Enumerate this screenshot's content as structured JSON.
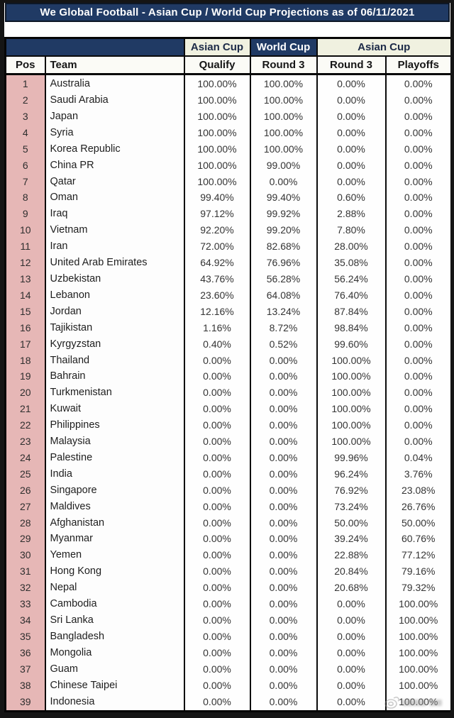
{
  "page": {
    "title": "We Global Football - Asian Cup / World Cup Projections as of 06/11/2021"
  },
  "colors": {
    "navy": "#203a64",
    "cream": "#f0f1e0",
    "rose_pos_column": "#e6b7b6",
    "border_black": "#0a0a0a",
    "header_bg": "#fbfbf6",
    "white": "#ffffff"
  },
  "watermark": {
    "icon": "weibo-eye-icon"
  },
  "chart_data": {
    "type": "table",
    "title": "We Global Football - Asian Cup / World Cup Projections as of 06/11/2021",
    "group_headers": [
      {
        "label": "",
        "span": 2,
        "style": "navy"
      },
      {
        "label": "Asian Cup",
        "span": 1,
        "style": "cream"
      },
      {
        "label": "World Cup",
        "span": 1,
        "style": "navy"
      },
      {
        "label": "Asian Cup",
        "span": 2,
        "style": "cream"
      }
    ],
    "columns": [
      "Pos",
      "Team",
      "Qualify",
      "Round 3",
      "Round 3",
      "Playoffs"
    ],
    "rows": [
      [
        "1",
        "Australia",
        "100.00%",
        "100.00%",
        "0.00%",
        "0.00%"
      ],
      [
        "2",
        "Saudi Arabia",
        "100.00%",
        "100.00%",
        "0.00%",
        "0.00%"
      ],
      [
        "3",
        "Japan",
        "100.00%",
        "100.00%",
        "0.00%",
        "0.00%"
      ],
      [
        "4",
        "Syria",
        "100.00%",
        "100.00%",
        "0.00%",
        "0.00%"
      ],
      [
        "5",
        "Korea Republic",
        "100.00%",
        "100.00%",
        "0.00%",
        "0.00%"
      ],
      [
        "6",
        "China PR",
        "100.00%",
        "99.00%",
        "0.00%",
        "0.00%"
      ],
      [
        "7",
        "Qatar",
        "100.00%",
        "0.00%",
        "0.00%",
        "0.00%"
      ],
      [
        "8",
        "Oman",
        "99.40%",
        "99.40%",
        "0.60%",
        "0.00%"
      ],
      [
        "9",
        "Iraq",
        "97.12%",
        "99.92%",
        "2.88%",
        "0.00%"
      ],
      [
        "10",
        "Vietnam",
        "92.20%",
        "99.20%",
        "7.80%",
        "0.00%"
      ],
      [
        "11",
        "Iran",
        "72.00%",
        "82.68%",
        "28.00%",
        "0.00%"
      ],
      [
        "12",
        "United Arab Emirates",
        "64.92%",
        "76.96%",
        "35.08%",
        "0.00%"
      ],
      [
        "13",
        "Uzbekistan",
        "43.76%",
        "56.28%",
        "56.24%",
        "0.00%"
      ],
      [
        "14",
        "Lebanon",
        "23.60%",
        "64.08%",
        "76.40%",
        "0.00%"
      ],
      [
        "15",
        "Jordan",
        "12.16%",
        "13.24%",
        "87.84%",
        "0.00%"
      ],
      [
        "16",
        "Tajikistan",
        "1.16%",
        "8.72%",
        "98.84%",
        "0.00%"
      ],
      [
        "17",
        "Kyrgyzstan",
        "0.40%",
        "0.52%",
        "99.60%",
        "0.00%"
      ],
      [
        "18",
        "Thailand",
        "0.00%",
        "0.00%",
        "100.00%",
        "0.00%"
      ],
      [
        "19",
        "Bahrain",
        "0.00%",
        "0.00%",
        "100.00%",
        "0.00%"
      ],
      [
        "20",
        "Turkmenistan",
        "0.00%",
        "0.00%",
        "100.00%",
        "0.00%"
      ],
      [
        "21",
        "Kuwait",
        "0.00%",
        "0.00%",
        "100.00%",
        "0.00%"
      ],
      [
        "22",
        "Philippines",
        "0.00%",
        "0.00%",
        "100.00%",
        "0.00%"
      ],
      [
        "23",
        "Malaysia",
        "0.00%",
        "0.00%",
        "100.00%",
        "0.00%"
      ],
      [
        "24",
        "Palestine",
        "0.00%",
        "0.00%",
        "99.96%",
        "0.04%"
      ],
      [
        "25",
        "India",
        "0.00%",
        "0.00%",
        "96.24%",
        "3.76%"
      ],
      [
        "26",
        "Singapore",
        "0.00%",
        "0.00%",
        "76.92%",
        "23.08%"
      ],
      [
        "27",
        "Maldives",
        "0.00%",
        "0.00%",
        "73.24%",
        "26.76%"
      ],
      [
        "28",
        "Afghanistan",
        "0.00%",
        "0.00%",
        "50.00%",
        "50.00%"
      ],
      [
        "29",
        "Myanmar",
        "0.00%",
        "0.00%",
        "39.24%",
        "60.76%"
      ],
      [
        "30",
        "Yemen",
        "0.00%",
        "0.00%",
        "22.88%",
        "77.12%"
      ],
      [
        "31",
        "Hong Kong",
        "0.00%",
        "0.00%",
        "20.84%",
        "79.16%"
      ],
      [
        "32",
        "Nepal",
        "0.00%",
        "0.00%",
        "20.68%",
        "79.32%"
      ],
      [
        "33",
        "Cambodia",
        "0.00%",
        "0.00%",
        "0.00%",
        "100.00%"
      ],
      [
        "34",
        "Sri Lanka",
        "0.00%",
        "0.00%",
        "0.00%",
        "100.00%"
      ],
      [
        "35",
        "Bangladesh",
        "0.00%",
        "0.00%",
        "0.00%",
        "100.00%"
      ],
      [
        "36",
        "Mongolia",
        "0.00%",
        "0.00%",
        "0.00%",
        "100.00%"
      ],
      [
        "37",
        "Guam",
        "0.00%",
        "0.00%",
        "0.00%",
        "100.00%"
      ],
      [
        "38",
        "Chinese Taipei",
        "0.00%",
        "0.00%",
        "0.00%",
        "100.00%"
      ],
      [
        "39",
        "Indonesia",
        "0.00%",
        "0.00%",
        "0.00%",
        "100.00%"
      ]
    ]
  }
}
